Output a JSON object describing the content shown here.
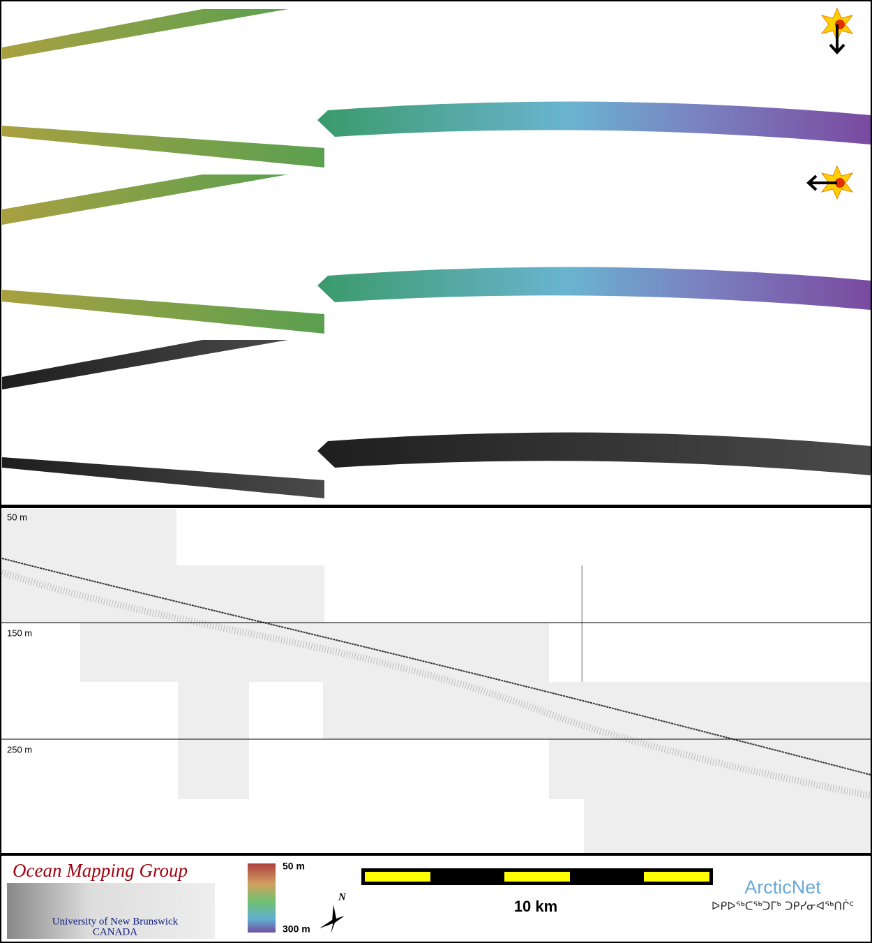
{
  "profile": {
    "depth_labels": [
      "50 m",
      "150 m",
      "250 m"
    ]
  },
  "legend": {
    "color_scale": {
      "top": "50 m",
      "bottom": "300 m"
    },
    "north": "N",
    "scale_bar": "10 km"
  },
  "logos": {
    "omg": {
      "title": "Ocean Mapping Group",
      "university": "University of New Brunswick",
      "country": "CANADA"
    },
    "arcticnet": {
      "name": "ArcticNet",
      "syllabics": "ᐅᑭᐅᖅᑕᖅᑐᒥᒃ ᑐᑭᓯᓂᐊᖅᑎᒌᑦ"
    }
  }
}
